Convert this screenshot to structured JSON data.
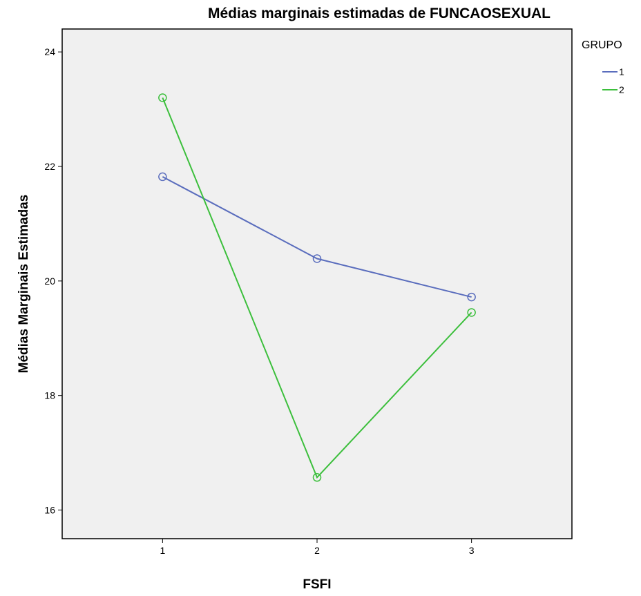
{
  "chart_data": {
    "type": "line",
    "title": "Médias marginais estimadas de FUNCAOSEXUAL",
    "xlabel": "FSFI",
    "ylabel": "Médias Marginais Estimadas",
    "categories": [
      "1",
      "2",
      "3"
    ],
    "ylim": [
      15.5,
      24.4
    ],
    "yticks": [
      16,
      18,
      20,
      22,
      24
    ],
    "xlim": [
      0.35,
      3.65
    ],
    "grid": false,
    "legend": {
      "title": "GRUPO",
      "position": "top-right"
    },
    "series": [
      {
        "name": "1",
        "color": "#5a6dbd",
        "values": [
          21.82,
          20.39,
          19.72
        ]
      },
      {
        "name": "2",
        "color": "#3cbf3c",
        "values": [
          23.2,
          16.57,
          19.45
        ]
      }
    ]
  }
}
